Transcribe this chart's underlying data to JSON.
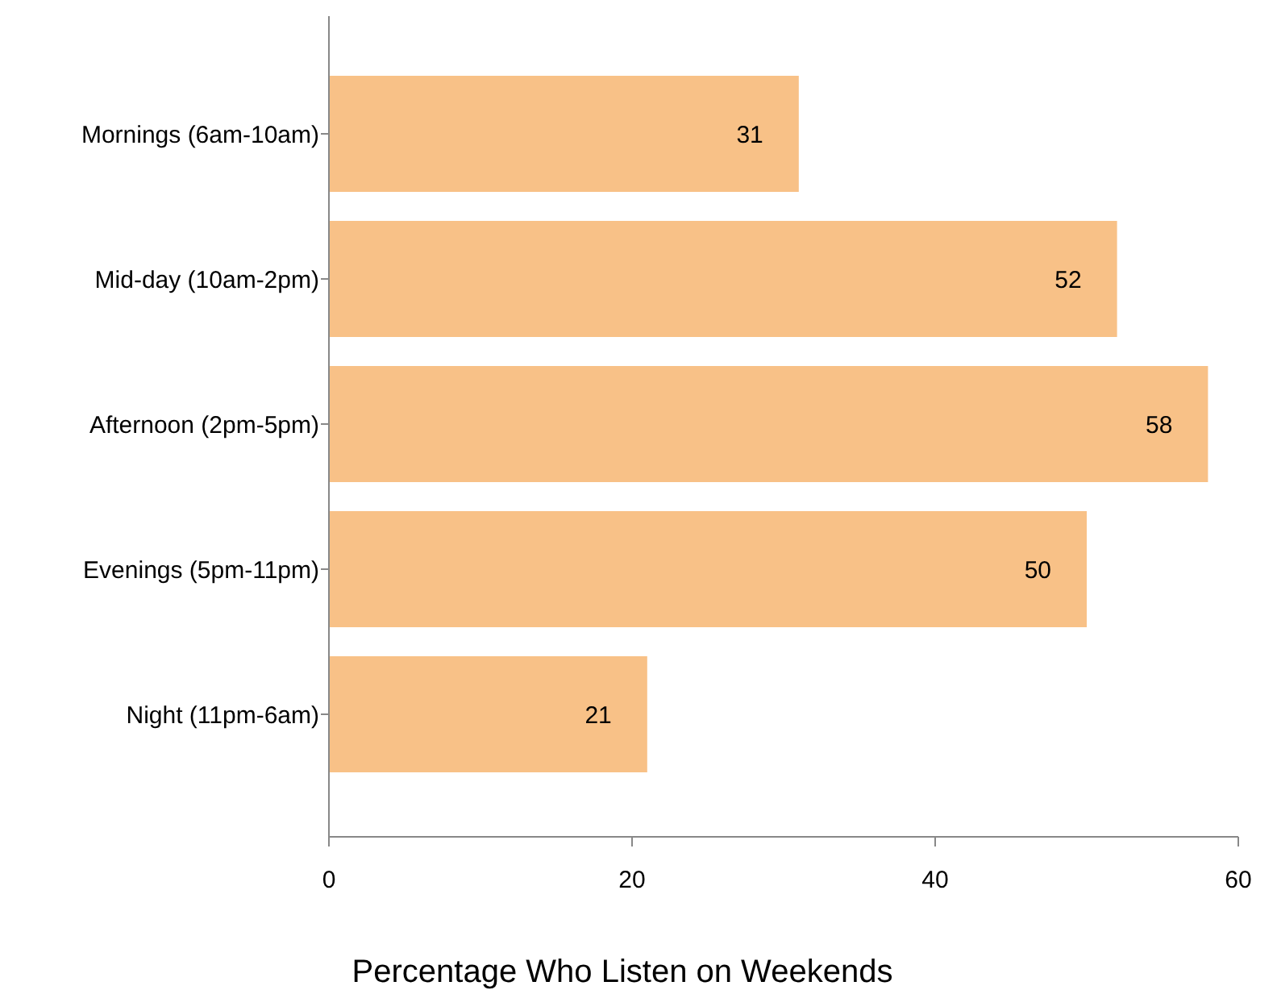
{
  "chart_data": {
    "type": "bar",
    "orientation": "horizontal",
    "xlabel": "Percentage Who Listen on Weekends",
    "categories": [
      "Mornings (6am-10am)",
      "Mid-day (10am-2pm)",
      "Afternoon (2pm-5pm)",
      "Evenings (5pm-11pm)",
      "Night (11pm-6am)"
    ],
    "values": [
      31,
      52,
      58,
      50,
      21
    ],
    "color": "#f8c187",
    "data_labels": true,
    "xlim": [
      0,
      60
    ],
    "xticks": [
      0,
      20,
      40,
      60
    ],
    "grid": false
  }
}
